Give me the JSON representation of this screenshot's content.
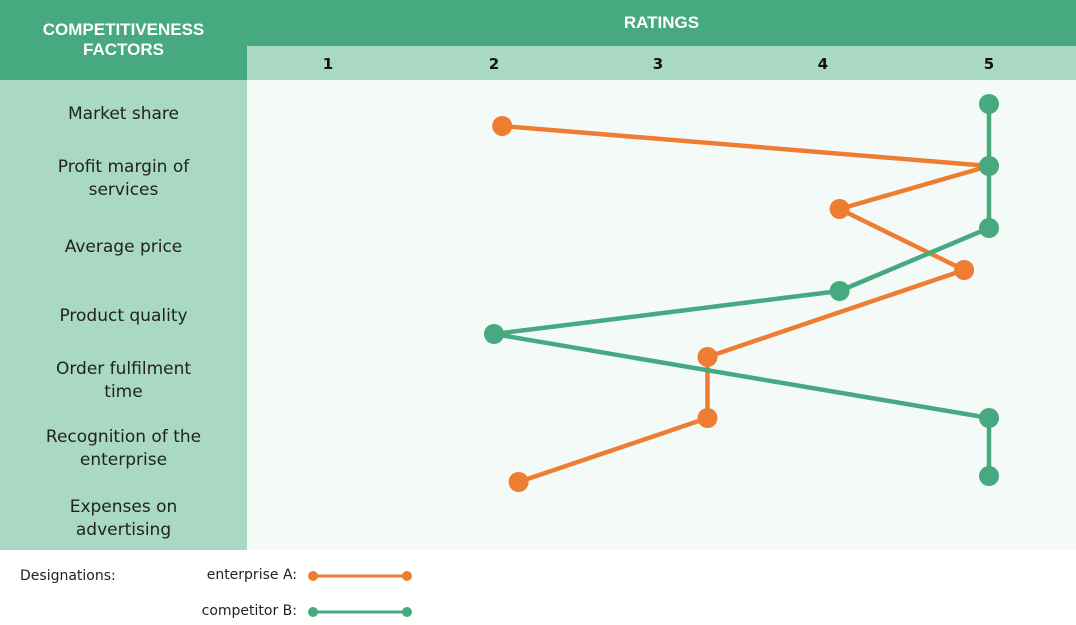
{
  "header": {
    "factors_title_line1": "COMPETITIVENESS",
    "factors_title_line2": "FACTORS",
    "ratings_title": "RATINGS"
  },
  "colors": {
    "header_dark": "#47a97f",
    "header_light": "#a9d8c3",
    "plot_bg": "#f3faf7",
    "enterprise_A": "#ee7d31",
    "competitor_B": "#47a97f"
  },
  "chart_data": {
    "type": "line",
    "title": "",
    "xlabel": "RATINGS",
    "ylabel": "COMPETITIVENESS FACTORS",
    "x_ticks": [
      "1",
      "2",
      "3",
      "4",
      "5"
    ],
    "xlim": [
      1,
      5
    ],
    "categories": [
      "Market share",
      "Profit margin of services",
      "Average price",
      "Product quality",
      "Order fulfilment time",
      "Recognition of the enterprise",
      "Expenses on advertising"
    ],
    "series": [
      {
        "name": "enterprise A:",
        "color": "#ee7d31",
        "values": [
          2.05,
          5.0,
          4.1,
          4.85,
          3.3,
          3.3,
          2.15
        ]
      },
      {
        "name": "competitor B:",
        "color": "#47a97f",
        "values": [
          5.0,
          5.0,
          5.0,
          4.1,
          2.0,
          5.0,
          5.0
        ]
      }
    ],
    "grid": false,
    "legend_placement": "bottom-left"
  },
  "factors_display": [
    [
      "Market share"
    ],
    [
      "Profit margin of",
      "services"
    ],
    [
      "Average price"
    ],
    [
      "Product quality"
    ],
    [
      "Order fulfilment",
      "time"
    ],
    [
      "Recognition of the",
      "enterprise"
    ],
    [
      "Expenses on",
      "advertising"
    ]
  ],
  "legend": {
    "title": "Designations:",
    "items": [
      "enterprise A:",
      "competitor B:"
    ]
  }
}
